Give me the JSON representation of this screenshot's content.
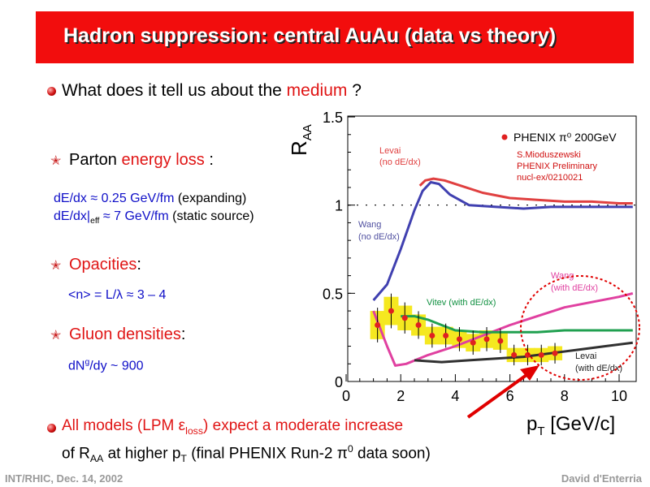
{
  "title": "Hadron suppression: central AuAu (data vs theory)",
  "question": {
    "pre": "What does it tell us about the ",
    "highlight": "medium",
    "post": " ?"
  },
  "parton": {
    "pre": "Parton ",
    "highlight": "energy loss",
    "post": " :"
  },
  "dedx1": {
    "blue": "dE/dx ≈ 0.25 GeV/fm",
    "black": " (expanding)"
  },
  "dedx2": {
    "blue_a": "dE/dx|",
    "sub": "eff",
    "blue_b": " ≈ 7 GeV/fm",
    "black": " (static source)"
  },
  "opacities": {
    "red": "Opacities",
    "black": ":"
  },
  "opacity_formula": "<n> = L/λ ≈ 3 – 4",
  "gluon": {
    "red": "Gluon densities",
    "black": ":"
  },
  "gluon_formula": {
    "pre": "dN",
    "sup": "g",
    "post": "/dy ~ 900"
  },
  "bottom1": {
    "red_a": "All models (LPM ε",
    "sub": "loss",
    "red_b": ") expect a moderate increase"
  },
  "bottom2": {
    "pre": "of R",
    "sub1": "AA",
    "mid": " at higher p",
    "sub2": "T",
    "mid2": " (final PHENIX Run-2 π",
    "sup": "0",
    "post": " data soon)"
  },
  "footer_left": "INT/RHIC, Dec. 14, 2002",
  "footer_right": "David d'Enterria",
  "chart_data": {
    "type": "line",
    "xlabel_main": "p",
    "xlabel_sub": "T",
    "xlabel_unit": " [GeV/c]",
    "ylabel_main": "R",
    "ylabel_sub": "AA",
    "xlim": [
      0,
      10.5
    ],
    "ylim": [
      0,
      1.5
    ],
    "xticks": [
      0,
      2,
      4,
      6,
      8,
      10
    ],
    "yticks": [
      0,
      0.5,
      1,
      1.5
    ],
    "ytick_labels": [
      "0",
      "0.5",
      "1",
      "1.5"
    ],
    "reference_line": 1,
    "legend": {
      "label": "PHENIX π⁰ 200GeV",
      "note1": "S.Mioduszewski",
      "note2": "PHENIX Preliminary",
      "note3": "nucl-ex/0210021"
    },
    "annotations": {
      "levai_top_1": "Levai",
      "levai_top_2": "(no dE/dx)",
      "wang_no_1": "Wang",
      "wang_no_2": "(no dE/dx)",
      "wang_with_1": "Wang",
      "wang_with_2": "(with dE/dx)",
      "vitev": "Vitev (with dE/dx)",
      "levai_bot_1": "Levai",
      "levai_bot_2": "(with dE/dx)"
    },
    "series": [
      {
        "name": "PHENIX π⁰ 200GeV",
        "kind": "points",
        "color": "#e02020",
        "x": [
          1.15,
          1.65,
          2.15,
          2.65,
          3.15,
          3.65,
          4.15,
          4.65,
          5.15,
          5.65,
          6.15,
          6.65,
          7.15,
          7.65
        ],
        "y": [
          0.32,
          0.4,
          0.36,
          0.32,
          0.26,
          0.26,
          0.24,
          0.22,
          0.24,
          0.23,
          0.15,
          0.15,
          0.15,
          0.16
        ],
        "err": [
          0.08,
          0.08,
          0.07,
          0.06,
          0.05,
          0.05,
          0.05,
          0.05,
          0.05,
          0.05,
          0.04,
          0.04,
          0.04,
          0.04
        ]
      },
      {
        "name": "Levai (no dE/dx)",
        "kind": "curve",
        "color": "#e04040",
        "x": [
          2.7,
          2.9,
          3.2,
          3.6,
          4.2,
          5.0,
          6.0,
          7.0,
          8.0,
          9.0,
          10.0,
          10.5
        ],
        "y": [
          1.11,
          1.14,
          1.15,
          1.14,
          1.11,
          1.07,
          1.04,
          1.03,
          1.02,
          1.02,
          1.01,
          1.01
        ]
      },
      {
        "name": "Wang (no dE/dx)",
        "kind": "curve",
        "color": "#4040b0",
        "x": [
          1.0,
          1.5,
          2.0,
          2.5,
          2.8,
          3.1,
          3.4,
          3.8,
          4.5,
          5.5,
          6.5,
          7.5,
          8.5,
          9.5,
          10.5
        ],
        "y": [
          0.46,
          0.55,
          0.75,
          0.97,
          1.08,
          1.13,
          1.12,
          1.06,
          1.0,
          0.99,
          0.98,
          0.99,
          0.99,
          0.99,
          0.99
        ]
      },
      {
        "name": "Wang (with dE/dx)",
        "kind": "curve",
        "color": "#e040a0",
        "x": [
          1.0,
          1.5,
          1.8,
          2.2,
          3.0,
          4.0,
          5.0,
          6.0,
          7.0,
          8.0,
          9.0,
          10.0,
          10.5
        ],
        "y": [
          0.4,
          0.2,
          0.09,
          0.1,
          0.15,
          0.2,
          0.26,
          0.32,
          0.37,
          0.42,
          0.45,
          0.48,
          0.5
        ]
      },
      {
        "name": "Vitev (with dE/dx)",
        "kind": "curve",
        "color": "#20a050",
        "x": [
          2.0,
          2.5,
          3.0,
          3.5,
          4.0,
          5.0,
          6.0,
          7.0,
          8.0,
          9.0,
          10.5
        ],
        "y": [
          0.37,
          0.37,
          0.35,
          0.32,
          0.29,
          0.28,
          0.28,
          0.28,
          0.29,
          0.29,
          0.29
        ]
      },
      {
        "name": "Levai (with dE/dx)",
        "kind": "curve",
        "color": "#303030",
        "x": [
          2.5,
          3.5,
          4.5,
          5.5,
          6.5,
          7.5,
          8.5,
          9.5,
          10.5
        ],
        "y": [
          0.12,
          0.11,
          0.12,
          0.13,
          0.14,
          0.16,
          0.18,
          0.2,
          0.22
        ]
      }
    ]
  }
}
